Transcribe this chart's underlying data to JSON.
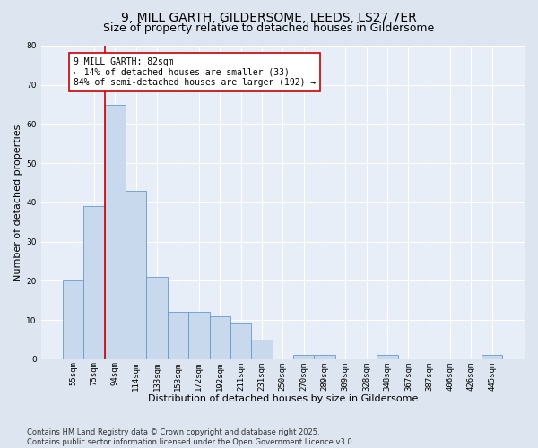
{
  "title_line1": "9, MILL GARTH, GILDERSOME, LEEDS, LS27 7ER",
  "title_line2": "Size of property relative to detached houses in Gildersome",
  "xlabel": "Distribution of detached houses by size in Gildersome",
  "ylabel": "Number of detached properties",
  "categories": [
    "55sqm",
    "75sqm",
    "94sqm",
    "114sqm",
    "133sqm",
    "153sqm",
    "172sqm",
    "192sqm",
    "211sqm",
    "231sqm",
    "250sqm",
    "270sqm",
    "289sqm",
    "309sqm",
    "328sqm",
    "348sqm",
    "367sqm",
    "387sqm",
    "406sqm",
    "426sqm",
    "445sqm"
  ],
  "values": [
    20,
    39,
    65,
    43,
    21,
    12,
    12,
    11,
    9,
    5,
    0,
    1,
    1,
    0,
    0,
    1,
    0,
    0,
    0,
    0,
    1
  ],
  "bar_color": "#c8d9ee",
  "bar_edge_color": "#6699cc",
  "vline_color": "#cc0000",
  "annotation_text": "9 MILL GARTH: 82sqm\n← 14% of detached houses are smaller (33)\n84% of semi-detached houses are larger (192) →",
  "annotation_box_color": "#cc0000",
  "ylim": [
    0,
    80
  ],
  "yticks": [
    0,
    10,
    20,
    30,
    40,
    50,
    60,
    70,
    80
  ],
  "background_color": "#e8eef8",
  "grid_color": "#ffffff",
  "footer": "Contains HM Land Registry data © Crown copyright and database right 2025.\nContains public sector information licensed under the Open Government Licence v3.0.",
  "title_fontsize": 10,
  "subtitle_fontsize": 9,
  "axis_label_fontsize": 8,
  "tick_fontsize": 6.5,
  "annotation_fontsize": 7,
  "footer_fontsize": 6
}
